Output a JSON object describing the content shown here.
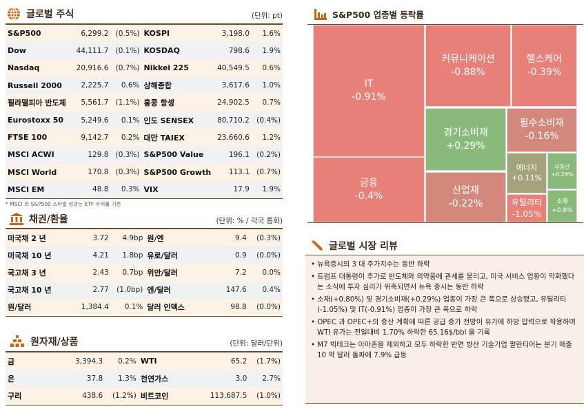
{
  "equity": {
    "title": "글로벌 주식",
    "unit": "(단위: pt)",
    "icon": "globe-icon",
    "note": "* MSCI 와 S&P500 스타일 성과는 ETF 수익률 기준",
    "rows": [
      [
        "S&P500",
        "6,299.2",
        "(0.5%)",
        "KOSPI",
        "3,198.0",
        "1.6%"
      ],
      [
        "Dow",
        "44,111.7",
        "(0.1%)",
        "KOSDAQ",
        "798.6",
        "1.9%"
      ],
      [
        "Nasdaq",
        "20,916.6",
        "(0.7%)",
        "Nikkei 225",
        "40,549.5",
        "0.6%"
      ],
      [
        "Russell 2000",
        "2,225.7",
        "0.6%",
        "상해종합",
        "3,617.6",
        "1.0%"
      ],
      [
        "필라델피아 반도체",
        "5,561.7",
        "(1.1%)",
        "홍콩 항셍",
        "24,902.5",
        "0.7%"
      ],
      [
        "Eurostoxx 50",
        "5,249.6",
        "0.1%",
        "인도 SENSEX",
        "80,710.2",
        "(0.4%)"
      ],
      [
        "FTSE 100",
        "9,142.7",
        "0.2%",
        "대만 TAIEX",
        "23,660.6",
        "1.2%"
      ],
      [
        "MSCI ACWI",
        "129.8",
        "(0.3%)",
        "S&P500 Value",
        "196.1",
        "(0.2%)"
      ],
      [
        "MSCI World",
        "170.8",
        "(0.3%)",
        "S&P500 Growth",
        "113.1",
        "(0.7%)"
      ],
      [
        "MSCI EM",
        "48.8",
        "0.3%",
        "VIX",
        "17.9",
        "1.9%"
      ]
    ]
  },
  "bonds": {
    "title": "채권/환율",
    "unit": "(단위: % / 각국 통화)",
    "icon": "bank-icon",
    "rows": [
      [
        "미국채 2 년",
        "3.72",
        "4.9bp",
        "원/엔",
        "9.4",
        "(0.3%)"
      ],
      [
        "미국채 10 년",
        "4.21",
        "1.8bp",
        "유로/달러",
        "0.9",
        "(0.0%)"
      ],
      [
        "국고채 3 년",
        "2.43",
        "0.7bp",
        "위안/달러",
        "7.2",
        "0.0%"
      ],
      [
        "국고채 10 년",
        "2.77",
        "(1.0bp)",
        "엔/달러",
        "147.6",
        "0.4%"
      ],
      [
        "원/달러",
        "1,384.4",
        "0.1%",
        "달러 인덱스",
        "98.8",
        "(0.0%)"
      ]
    ]
  },
  "commodities": {
    "title": "원자재/상품",
    "unit": "(단위: 달러/단위)",
    "icon": "gold-bars-icon",
    "rows": [
      [
        "금",
        "3,394.3",
        "0.2%",
        "WTI",
        "65.2",
        "(1.7%)"
      ],
      [
        "은",
        "37.8",
        "1.3%",
        "천연가스",
        "3.0",
        "2.7%"
      ],
      [
        "구리",
        "438.6",
        "(1.2%)",
        "비트코인",
        "113,687.5",
        "(1.0%)"
      ]
    ]
  },
  "sectors": {
    "title": "S&P500 업종별 등락률",
    "icon": "bar-chart-icon",
    "colors": {
      "down": "#e8807a",
      "up": "#8ab97c",
      "mild_down": "#d4887b",
      "mild_up": "#a3a47c"
    },
    "items": [
      {
        "name": "IT",
        "value": "-0.91%"
      },
      {
        "name": "금융",
        "value": "-0.4%"
      },
      {
        "name": "커뮤니케이션",
        "value": "-0.88%"
      },
      {
        "name": "헬스케어",
        "value": "-0.39%"
      },
      {
        "name": "경기소비재",
        "value": "+0.29%"
      },
      {
        "name": "산업재",
        "value": "-0.22%"
      },
      {
        "name": "필수소비재",
        "value": "-0.16%"
      },
      {
        "name": "에너지",
        "value": "+0.11%"
      },
      {
        "name": "부동산",
        "value": "+0.29%"
      },
      {
        "name": "유틸리티",
        "value": "-1.05%"
      },
      {
        "name": "소재",
        "value": "+0.8%"
      }
    ]
  },
  "review": {
    "title": "글로벌 시장 리뷰",
    "icon": "pencil-icon",
    "items": [
      "뉴욕증시의 3 대 주가지수는 동반 하락",
      "트럼프 대통령이 추가로 반도체와 의약품에 관세를 물리고, 미국 서비스 업황이 악화했다는 소식에 투자 심리가 위축되면서 뉴욕 증시는 동반 하락",
      "소재(+0.80%) 및 경기소비재(+0.29%) 업종이 가장 큰 폭으로 상승했고, 유틸리티(-1.05%) 및 IT(-0.91%) 업종이 가장 큰 폭으로 하락",
      "OPEC 과 OPEC+의 증산 계획에 따른 공급 증가 전망이 유가에 하방 압력으로 작용하며 WTI 유가는 전일대비 1.70% 하락한 65.16$/bbl 을 기록",
      "M7 빅테크는 아마존을 제외하고 모두 하락한 반면 방산 기술기업 팔란티어는 분기 매출 10 억 달러 돌파에 7.9% 급등"
    ]
  }
}
